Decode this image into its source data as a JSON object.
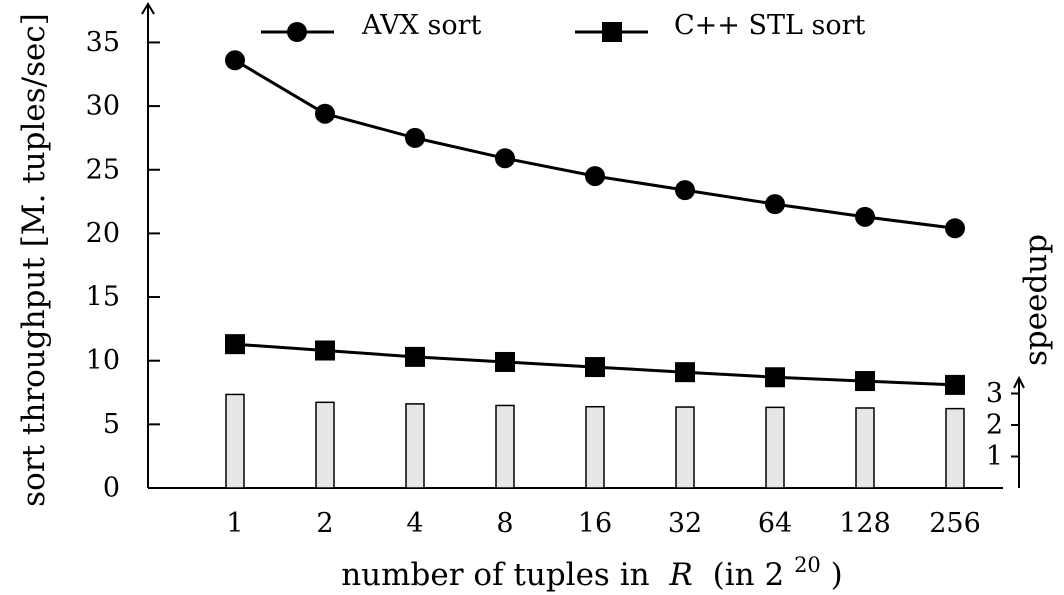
{
  "chart_data": {
    "type": "line",
    "categories": [
      "1",
      "2",
      "4",
      "8",
      "16",
      "32",
      "64",
      "128",
      "256"
    ],
    "series": [
      {
        "name": "AVX sort",
        "marker": "circle",
        "values": [
          33.6,
          29.4,
          27.5,
          25.9,
          24.5,
          23.4,
          22.3,
          21.3,
          20.4
        ]
      },
      {
        "name": "C++ STL sort",
        "marker": "square",
        "values": [
          11.3,
          10.8,
          10.3,
          9.9,
          9.5,
          9.1,
          8.7,
          8.4,
          8.1
        ]
      }
    ],
    "speedup_bars": {
      "label": "speedup",
      "values": [
        2.97,
        2.72,
        2.67,
        2.62,
        2.58,
        2.57,
        2.56,
        2.54,
        2.52
      ],
      "fill_color": "#e6e6e6",
      "ticks": [
        "1",
        "2",
        "3"
      ],
      "ylim": [
        0,
        3
      ]
    },
    "xlabel_prefix": "number of tuples in",
    "xlabel_var": "R",
    "xlabel_paren_open": "(in 2",
    "xlabel_exp": "20",
    "xlabel_paren_close": ")",
    "ylabel": "sort throughput [M. tuples/sec]",
    "yticks": [
      "0",
      "5",
      "10",
      "15",
      "20",
      "25",
      "30",
      "35"
    ],
    "ylim": [
      0,
      37
    ],
    "legend_position": "top",
    "grid": false
  }
}
